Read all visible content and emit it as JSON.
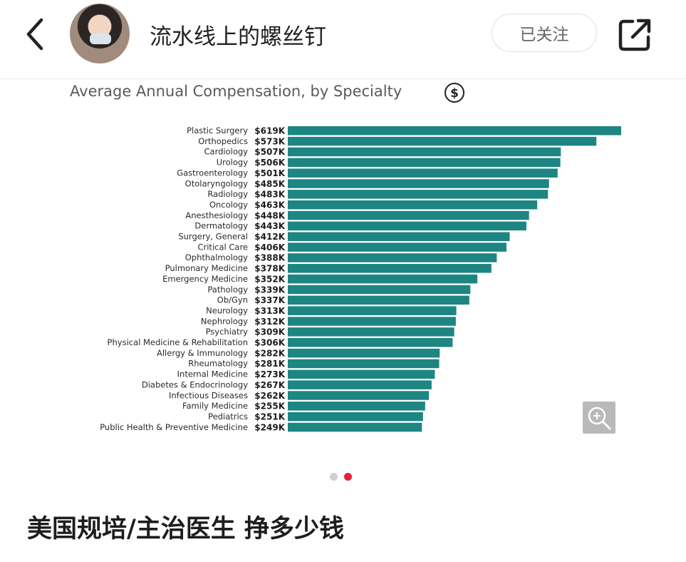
{
  "header": {
    "author_name": "流水线上的螺丝钉",
    "follow_label": "已关注",
    "icons": [
      "back-arrow-icon",
      "avatar",
      "share-icon"
    ]
  },
  "carousel": {
    "total_images": 2,
    "active_index": 1,
    "zoom_icon": "zoom-in-icon",
    "dollar_icon": "dollar-icon"
  },
  "post": {
    "title": "美国规培/主治医生 挣多少钱"
  },
  "colors": {
    "bar": "#1d8582",
    "active_dot": "#e8203d"
  },
  "chart_data": {
    "type": "bar",
    "orientation": "horizontal",
    "title": "Average Annual Compensation, by Specialty",
    "categories": [
      "Plastic Surgery",
      "Orthopedics",
      "Cardiology",
      "Urology",
      "Gastroenterology",
      "Otolaryngology",
      "Radiology",
      "Oncology",
      "Anesthesiology",
      "Dermatology",
      "Surgery, General",
      "Critical Care",
      "Ophthalmology",
      "Pulmonary Medicine",
      "Emergency Medicine",
      "Pathology",
      "Ob/Gyn",
      "Neurology",
      "Nephrology",
      "Psychiatry",
      "Physical Medicine & Rehabilitation",
      "Allergy & Immunology",
      "Rheumatology",
      "Internal Medicine",
      "Diabetes & Endocrinology",
      "Infectious Diseases",
      "Family Medicine",
      "Pediatrics",
      "Public Health & Preventive Medicine"
    ],
    "values": [
      619,
      573,
      507,
      506,
      501,
      485,
      483,
      463,
      448,
      443,
      412,
      406,
      388,
      378,
      352,
      339,
      337,
      313,
      312,
      309,
      306,
      282,
      281,
      273,
      267,
      262,
      255,
      251,
      249
    ],
    "value_labels": [
      "$619K",
      "$573K",
      "$507K",
      "$506K",
      "$501K",
      "$485K",
      "$483K",
      "$463K",
      "$448K",
      "$443K",
      "$412K",
      "$406K",
      "$388K",
      "$378K",
      "$352K",
      "$339K",
      "$337K",
      "$313K",
      "$312K",
      "$309K",
      "$306K",
      "$282K",
      "$281K",
      "$273K",
      "$267K",
      "$262K",
      "$255K",
      "$251K",
      "$249K"
    ],
    "unit": "$K"
  }
}
